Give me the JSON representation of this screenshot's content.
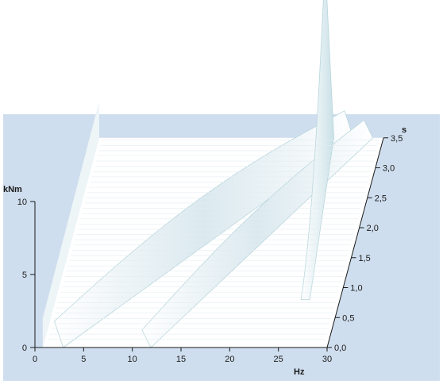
{
  "chart_data": {
    "type": "surface-3d",
    "title": "",
    "colors": {
      "panel": "#cfdeee",
      "surface": "#ffffff",
      "ridge_shade": "#b9d6dd",
      "axis": "#1a1a1a"
    },
    "x_axis": {
      "label": "Hz",
      "range": [
        0,
        30
      ],
      "ticks": [
        0,
        5,
        10,
        15,
        20,
        25,
        30
      ],
      "tick_labels": [
        "0",
        "5",
        "10",
        "15",
        "20",
        "25",
        "30"
      ]
    },
    "z_axis": {
      "label": "kNm",
      "range": [
        0,
        10
      ],
      "ticks": [
        0,
        5,
        10
      ],
      "tick_labels": [
        "0",
        "5",
        "10"
      ]
    },
    "y_axis": {
      "label": "s",
      "range": [
        0,
        3.5
      ],
      "ticks": [
        0,
        0.5,
        1.0,
        1.5,
        2.0,
        2.5,
        3.0,
        3.5
      ],
      "tick_labels": [
        "0,0",
        "0,5",
        "1,0",
        "1,5",
        "2,0",
        "2,5",
        "3,0",
        "3,5"
      ]
    },
    "ridges": [
      {
        "x_start": 2,
        "x_end": 26,
        "t_start": 0.0,
        "t_end": 3.5,
        "amplitude": 3
      },
      {
        "x_start": 11,
        "x_end": 28,
        "t_start": 0.0,
        "t_end": 3.5,
        "amplitude": 2
      },
      {
        "x_start": 26,
        "x_end": 24,
        "t_start": 0.8,
        "t_end": 3.5,
        "amplitude": 12
      }
    ]
  }
}
